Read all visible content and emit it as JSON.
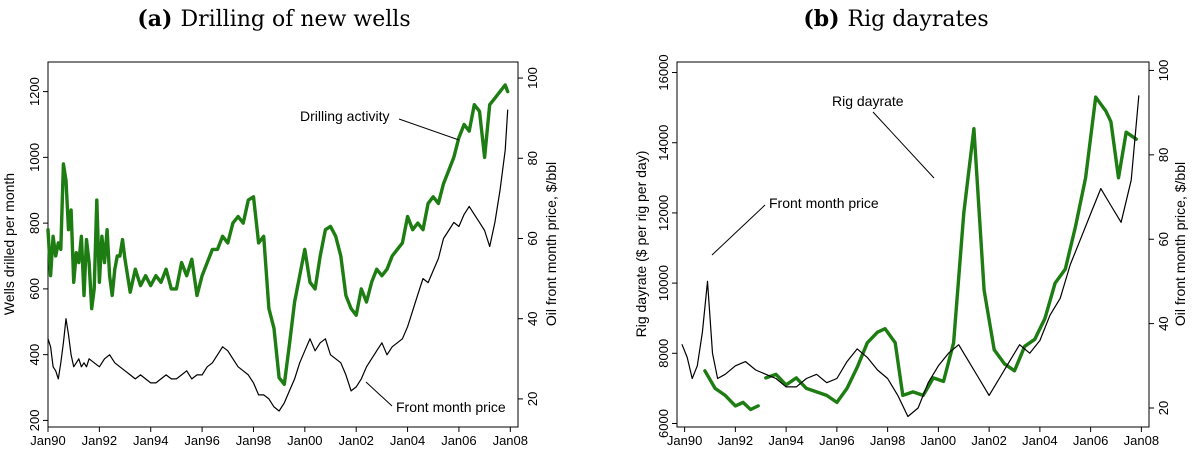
{
  "colors": {
    "green": "#1e7d12",
    "black": "#000000"
  },
  "chart_data": [
    {
      "type": "line",
      "panel_letter": "(a)",
      "title": "Drilling of new wells",
      "ylabel_left": "Wells drilled per month",
      "ylabel_right": "Oil front month price, $/bbl",
      "x_ticks": [
        "Jan90",
        "Jan92",
        "Jan94",
        "Jan96",
        "Jan98",
        "Jan00",
        "Jan02",
        "Jan04",
        "Jan06",
        "Jan08"
      ],
      "xlim": [
        1990.0,
        2008.3
      ],
      "ylim_left": [
        180,
        1290
      ],
      "yticks_left": [
        200,
        400,
        600,
        800,
        1000,
        1200
      ],
      "ylim_right": [
        13,
        104
      ],
      "yticks_right": [
        20,
        40,
        60,
        80,
        100
      ],
      "annotations": [
        "Drilling activity",
        "Front month price"
      ],
      "series": [
        {
          "name": "Drilling activity",
          "axis": "left",
          "color": "#1e7d12",
          "x": [
            1990.0,
            1990.1,
            1990.2,
            1990.3,
            1990.4,
            1990.5,
            1990.6,
            1990.7,
            1990.8,
            1990.9,
            1991.0,
            1991.1,
            1991.2,
            1991.3,
            1991.4,
            1991.5,
            1991.6,
            1991.7,
            1991.8,
            1991.9,
            1992.0,
            1992.1,
            1992.2,
            1992.3,
            1992.4,
            1992.5,
            1992.6,
            1992.7,
            1992.8,
            1992.9,
            1993.0,
            1993.2,
            1993.4,
            1993.6,
            1993.8,
            1994.0,
            1994.2,
            1994.4,
            1994.6,
            1994.8,
            1995.0,
            1995.2,
            1995.4,
            1995.6,
            1995.8,
            1996.0,
            1996.2,
            1996.4,
            1996.6,
            1996.8,
            1997.0,
            1997.2,
            1997.4,
            1997.6,
            1997.8,
            1998.0,
            1998.2,
            1998.4,
            1998.6,
            1998.8,
            1999.0,
            1999.2,
            1999.4,
            1999.6,
            1999.8,
            2000.0,
            2000.2,
            2000.4,
            2000.6,
            2000.8,
            2001.0,
            2001.2,
            2001.4,
            2001.6,
            2001.8,
            2002.0,
            2002.2,
            2002.4,
            2002.6,
            2002.8,
            2003.0,
            2003.2,
            2003.4,
            2003.6,
            2003.8,
            2004.0,
            2004.2,
            2004.4,
            2004.6,
            2004.8,
            2005.0,
            2005.2,
            2005.4,
            2005.6,
            2005.8,
            2006.0,
            2006.2,
            2006.4,
            2006.6,
            2006.8,
            2007.0,
            2007.2,
            2007.4,
            2007.6,
            2007.8,
            2007.9
          ],
          "values": [
            780,
            640,
            760,
            700,
            740,
            720,
            980,
            930,
            780,
            840,
            620,
            710,
            680,
            760,
            580,
            750,
            680,
            540,
            600,
            870,
            620,
            760,
            680,
            780,
            640,
            580,
            660,
            700,
            700,
            750,
            690,
            590,
            660,
            610,
            640,
            610,
            640,
            620,
            660,
            600,
            600,
            680,
            640,
            690,
            580,
            640,
            680,
            720,
            720,
            760,
            740,
            800,
            820,
            800,
            870,
            880,
            740,
            760,
            540,
            480,
            330,
            310,
            430,
            560,
            640,
            720,
            620,
            600,
            700,
            780,
            790,
            760,
            700,
            580,
            540,
            520,
            600,
            560,
            620,
            660,
            640,
            660,
            700,
            720,
            740,
            820,
            780,
            800,
            780,
            860,
            880,
            860,
            920,
            960,
            1000,
            1060,
            1100,
            1080,
            1160,
            1140,
            1000,
            1160,
            1180,
            1200,
            1220,
            1200
          ]
        },
        {
          "name": "Front month price",
          "axis": "right",
          "color": "#000000",
          "x": [
            1990.0,
            1990.1,
            1990.2,
            1990.3,
            1990.4,
            1990.5,
            1990.6,
            1990.7,
            1990.8,
            1990.9,
            1991.0,
            1991.1,
            1991.2,
            1991.3,
            1991.4,
            1991.5,
            1991.6,
            1991.8,
            1992.0,
            1992.2,
            1992.4,
            1992.6,
            1992.8,
            1993.0,
            1993.2,
            1993.4,
            1993.6,
            1993.8,
            1994.0,
            1994.2,
            1994.4,
            1994.6,
            1994.8,
            1995.0,
            1995.2,
            1995.4,
            1995.6,
            1995.8,
            1996.0,
            1996.2,
            1996.4,
            1996.6,
            1996.8,
            1997.0,
            1997.2,
            1997.4,
            1997.6,
            1997.8,
            1998.0,
            1998.2,
            1998.4,
            1998.6,
            1998.8,
            1999.0,
            1999.2,
            1999.4,
            1999.6,
            1999.8,
            2000.0,
            2000.2,
            2000.4,
            2000.6,
            2000.8,
            2001.0,
            2001.2,
            2001.4,
            2001.6,
            2001.8,
            2002.0,
            2002.2,
            2002.4,
            2002.6,
            2002.8,
            2003.0,
            2003.2,
            2003.4,
            2003.6,
            2003.8,
            2004.0,
            2004.2,
            2004.4,
            2004.6,
            2004.8,
            2005.0,
            2005.2,
            2005.4,
            2005.6,
            2005.8,
            2006.0,
            2006.2,
            2006.4,
            2006.6,
            2006.8,
            2007.0,
            2007.2,
            2007.4,
            2007.6,
            2007.8,
            2007.9
          ],
          "values": [
            35,
            33,
            28,
            27,
            25,
            29,
            34,
            40,
            36,
            31,
            28,
            29,
            30,
            28,
            29,
            28,
            30,
            29,
            28,
            30,
            31,
            29,
            28,
            27,
            26,
            25,
            26,
            25,
            24,
            24,
            25,
            26,
            25,
            25,
            26,
            27,
            25,
            26,
            26,
            28,
            29,
            31,
            33,
            32,
            30,
            28,
            27,
            26,
            24,
            21,
            21,
            20,
            18,
            17,
            19,
            22,
            25,
            29,
            32,
            35,
            32,
            34,
            35,
            31,
            30,
            29,
            26,
            22,
            23,
            25,
            28,
            30,
            32,
            34,
            31,
            33,
            34,
            35,
            38,
            42,
            46,
            50,
            49,
            52,
            55,
            60,
            62,
            64,
            63,
            66,
            68,
            66,
            64,
            62,
            58,
            64,
            72,
            82,
            92
          ]
        }
      ]
    },
    {
      "type": "line",
      "panel_letter": "(b)",
      "title": "Rig dayrates",
      "ylabel_left": "Rig dayrate ($ per rig per day)",
      "ylabel_right": "Oil front month price, $/bbl",
      "x_ticks": [
        "Jan90",
        "Jan92",
        "Jan94",
        "Jan96",
        "Jan98",
        "Jan00",
        "Jan02",
        "Jan04",
        "Jan06",
        "Jan08"
      ],
      "xlim": [
        1989.7,
        2008.3
      ],
      "ylim_left": [
        5900,
        16300
      ],
      "yticks_left": [
        6000,
        8000,
        10000,
        12000,
        14000,
        16000
      ],
      "ylim_right": [
        15.5,
        102
      ],
      "yticks_right": [
        20,
        40,
        60,
        80,
        100
      ],
      "annotations": [
        "Rig dayrate",
        "Front month price"
      ],
      "series": [
        {
          "name": "Rig dayrate",
          "axis": "left",
          "color": "#1e7d12",
          "segments": [
            {
              "x": [
                1990.8,
                1991.2,
                1991.6,
                1992.0,
                1992.3,
                1992.6,
                1992.9
              ],
              "values": [
                7500,
                7000,
                6800,
                6500,
                6600,
                6400,
                6500
              ]
            },
            {
              "x": [
                1993.2,
                1993.6,
                1994.0,
                1994.4,
                1994.8,
                1995.2,
                1995.6,
                1996.0,
                1996.4,
                1996.8,
                1997.2,
                1997.6,
                1997.9,
                1998.3,
                1998.6,
                1999.0,
                1999.4,
                1999.8,
                2000.2,
                2000.6,
                2001.0,
                2001.4,
                2001.8,
                2002.2,
                2002.6,
                2003.0,
                2003.4,
                2003.8,
                2004.2,
                2004.6,
                2005.0,
                2005.4,
                2005.8,
                2006.2,
                2006.6,
                2006.8,
                2007.1,
                2007.4,
                2007.8
              ],
              "values": [
                7300,
                7400,
                7100,
                7300,
                7000,
                6900,
                6800,
                6600,
                7000,
                7600,
                8300,
                8600,
                8700,
                8300,
                6800,
                6900,
                6800,
                7300,
                7200,
                8300,
                12000,
                14400,
                9800,
                8100,
                7700,
                7500,
                8200,
                8400,
                9000,
                10000,
                10400,
                11600,
                13000,
                15300,
                14900,
                14600,
                13000,
                14300,
                14100
              ]
            }
          ]
        },
        {
          "name": "Front month price",
          "axis": "right",
          "color": "#000000",
          "x": [
            1989.9,
            1990.1,
            1990.3,
            1990.5,
            1990.7,
            1990.9,
            1991.1,
            1991.3,
            1991.6,
            1992.0,
            1992.4,
            1992.8,
            1993.2,
            1993.6,
            1994.0,
            1994.4,
            1994.8,
            1995.2,
            1995.6,
            1996.0,
            1996.4,
            1996.8,
            1997.2,
            1997.6,
            1998.0,
            1998.4,
            1998.8,
            1999.2,
            1999.6,
            2000.0,
            2000.4,
            2000.8,
            2001.2,
            2001.6,
            2002.0,
            2002.4,
            2002.8,
            2003.2,
            2003.6,
            2004.0,
            2004.4,
            2004.8,
            2005.2,
            2005.6,
            2006.0,
            2006.4,
            2006.8,
            2007.2,
            2007.6,
            2007.9
          ],
          "values": [
            35,
            32,
            27,
            30,
            38,
            50,
            33,
            27,
            28,
            30,
            31,
            29,
            28,
            27,
            25,
            25,
            27,
            28,
            26,
            27,
            31,
            34,
            32,
            29,
            27,
            23,
            18,
            20,
            26,
            30,
            33,
            35,
            31,
            27,
            23,
            27,
            31,
            35,
            33,
            36,
            42,
            46,
            54,
            60,
            66,
            72,
            68,
            64,
            74,
            94
          ]
        }
      ]
    }
  ]
}
